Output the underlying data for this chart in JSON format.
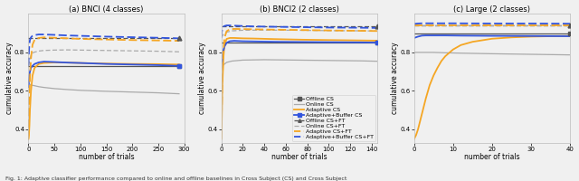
{
  "fig_width": 6.4,
  "fig_height": 2.0,
  "dpi": 100,
  "subplots": [
    {
      "title": "(a) BNCI (4 classes)",
      "xlabel": "number of trials",
      "ylabel": "cumulative accuracy",
      "xlim": [
        0,
        300
      ],
      "ylim": [
        0.33,
        1.0
      ],
      "yticks": [
        0.4,
        0.6,
        0.8
      ],
      "xticks": [
        0,
        50,
        100,
        150,
        200,
        250,
        300
      ],
      "lines": [
        {
          "label": "Offline CS",
          "color": "#555555",
          "ls": "solid",
          "lw": 0.9,
          "marker": "s",
          "marker_at_end": true,
          "x": [
            0,
            5,
            10,
            20,
            30,
            50,
            100,
            150,
            200,
            250,
            290
          ],
          "y": [
            0.73,
            0.73,
            0.73,
            0.73,
            0.73,
            0.73,
            0.73,
            0.73,
            0.73,
            0.73,
            0.73
          ]
        },
        {
          "label": "Online CS",
          "color": "#aaaaaa",
          "ls": "solid",
          "lw": 0.9,
          "marker": null,
          "marker_at_end": false,
          "x": [
            0,
            5,
            10,
            20,
            30,
            50,
            75,
            100,
            150,
            200,
            250,
            290
          ],
          "y": [
            0.64,
            0.63,
            0.628,
            0.622,
            0.618,
            0.612,
            0.607,
            0.603,
            0.598,
            0.594,
            0.59,
            0.585
          ]
        },
        {
          "label": "Adaptive CS",
          "color": "#f5a623",
          "ls": "solid",
          "lw": 1.3,
          "marker": null,
          "marker_at_end": false,
          "x": [
            0,
            1,
            2,
            3,
            5,
            8,
            12,
            20,
            30,
            50,
            75,
            100,
            150,
            200,
            250,
            290
          ],
          "y": [
            0.35,
            0.37,
            0.42,
            0.5,
            0.6,
            0.68,
            0.72,
            0.74,
            0.745,
            0.748,
            0.747,
            0.745,
            0.742,
            0.74,
            0.739,
            0.737
          ]
        },
        {
          "label": "Adaptive+Buffer CS",
          "color": "#3355dd",
          "ls": "solid",
          "lw": 1.3,
          "marker": "s",
          "marker_at_end": true,
          "x": [
            0,
            1,
            2,
            3,
            5,
            8,
            12,
            20,
            30,
            50,
            75,
            100,
            150,
            200,
            250,
            290
          ],
          "y": [
            0.62,
            0.65,
            0.68,
            0.7,
            0.72,
            0.73,
            0.74,
            0.748,
            0.752,
            0.75,
            0.747,
            0.745,
            0.74,
            0.737,
            0.734,
            0.73
          ]
        },
        {
          "label": "Offline CS+FT",
          "color": "#555555",
          "ls": "dashed",
          "lw": 0.9,
          "dashes": [
            4,
            2
          ],
          "marker": "^",
          "marker_at_end": true,
          "x": [
            0,
            5,
            10,
            20,
            30,
            50,
            100,
            150,
            200,
            250,
            290
          ],
          "y": [
            0.875,
            0.875,
            0.875,
            0.875,
            0.875,
            0.875,
            0.875,
            0.875,
            0.875,
            0.875,
            0.875
          ]
        },
        {
          "label": "Online CS+FT",
          "color": "#aaaaaa",
          "ls": "dashed",
          "lw": 0.9,
          "dashes": [
            4,
            2
          ],
          "marker": null,
          "marker_at_end": false,
          "x": [
            0,
            5,
            10,
            20,
            30,
            50,
            75,
            100,
            150,
            200,
            250,
            290
          ],
          "y": [
            0.73,
            0.785,
            0.8,
            0.807,
            0.81,
            0.812,
            0.813,
            0.812,
            0.81,
            0.808,
            0.806,
            0.803
          ]
        },
        {
          "label": "Adaptive CS+FT",
          "color": "#f5a623",
          "ls": "dashed",
          "lw": 1.3,
          "dashes": [
            5,
            2
          ],
          "marker": null,
          "marker_at_end": false,
          "x": [
            0,
            1,
            2,
            3,
            5,
            8,
            12,
            20,
            30,
            50,
            75,
            100,
            150,
            200,
            250,
            290
          ],
          "y": [
            0.35,
            0.42,
            0.56,
            0.67,
            0.77,
            0.84,
            0.865,
            0.875,
            0.878,
            0.876,
            0.873,
            0.87,
            0.867,
            0.864,
            0.862,
            0.86
          ]
        },
        {
          "label": "Adaptive+Buffer CS+FT",
          "color": "#3355dd",
          "ls": "dashed",
          "lw": 1.3,
          "dashes": [
            5,
            2
          ],
          "marker": null,
          "marker_at_end": false,
          "x": [
            0,
            1,
            2,
            3,
            5,
            8,
            12,
            20,
            30,
            50,
            75,
            100,
            150,
            200,
            250,
            290
          ],
          "y": [
            0.73,
            0.8,
            0.845,
            0.865,
            0.878,
            0.886,
            0.89,
            0.893,
            0.893,
            0.891,
            0.888,
            0.886,
            0.882,
            0.879,
            0.876,
            0.873
          ]
        }
      ]
    },
    {
      "title": "(b) BNCI2 (2 classes)",
      "xlabel": "number of trials",
      "ylabel": "cumulative accuracy",
      "xlim": [
        0,
        145
      ],
      "ylim": [
        0.33,
        1.0
      ],
      "yticks": [
        0.4,
        0.6,
        0.8
      ],
      "xticks": [
        0,
        20,
        40,
        60,
        80,
        100,
        120,
        140
      ],
      "lines": [
        {
          "label": "Offline CS",
          "color": "#555555",
          "ls": "solid",
          "lw": 0.9,
          "marker": "s",
          "marker_at_end": true,
          "x": [
            0,
            5,
            10,
            20,
            40,
            70,
            100,
            130,
            145
          ],
          "y": [
            0.853,
            0.853,
            0.853,
            0.853,
            0.853,
            0.853,
            0.853,
            0.853,
            0.853
          ]
        },
        {
          "label": "Online CS",
          "color": "#aaaaaa",
          "ls": "solid",
          "lw": 0.9,
          "marker": null,
          "marker_at_end": false,
          "x": [
            0,
            2,
            5,
            10,
            20,
            40,
            70,
            100,
            130,
            145
          ],
          "y": [
            0.715,
            0.735,
            0.748,
            0.755,
            0.76,
            0.762,
            0.76,
            0.758,
            0.756,
            0.754
          ]
        },
        {
          "label": "Adaptive CS",
          "color": "#f5a623",
          "ls": "solid",
          "lw": 1.3,
          "marker": null,
          "marker_at_end": false,
          "x": [
            0,
            0.5,
            1,
            2,
            3,
            5,
            8,
            12,
            20,
            30,
            50,
            75,
            100,
            130,
            145
          ],
          "y": [
            0.35,
            0.45,
            0.62,
            0.77,
            0.84,
            0.87,
            0.875,
            0.875,
            0.873,
            0.872,
            0.869,
            0.866,
            0.864,
            0.862,
            0.861
          ]
        },
        {
          "label": "Adaptive+Buffer CS",
          "color": "#3355dd",
          "ls": "solid",
          "lw": 1.3,
          "marker": "s",
          "marker_at_end": true,
          "x": [
            0,
            0.5,
            1,
            2,
            3,
            5,
            8,
            12,
            20,
            30,
            50,
            75,
            100,
            130,
            145
          ],
          "y": [
            0.715,
            0.745,
            0.78,
            0.81,
            0.83,
            0.85,
            0.858,
            0.86,
            0.858,
            0.857,
            0.855,
            0.854,
            0.853,
            0.852,
            0.851
          ]
        },
        {
          "label": "Offline CS+FT",
          "color": "#555555",
          "ls": "dashed",
          "lw": 0.9,
          "dashes": [
            4,
            2
          ],
          "marker": "^",
          "marker_at_end": true,
          "x": [
            0,
            5,
            10,
            20,
            40,
            70,
            100,
            130,
            145
          ],
          "y": [
            0.935,
            0.935,
            0.935,
            0.935,
            0.935,
            0.935,
            0.935,
            0.935,
            0.935
          ]
        },
        {
          "label": "Online CS+FT",
          "color": "#aaaaaa",
          "ls": "dashed",
          "lw": 0.9,
          "dashes": [
            4,
            2
          ],
          "marker": null,
          "marker_at_end": false,
          "x": [
            0,
            2,
            5,
            10,
            20,
            40,
            70,
            100,
            130,
            145
          ],
          "y": [
            0.875,
            0.893,
            0.905,
            0.912,
            0.915,
            0.916,
            0.915,
            0.913,
            0.912,
            0.911
          ]
        },
        {
          "label": "Adaptive CS+FT",
          "color": "#f5a623",
          "ls": "dashed",
          "lw": 1.3,
          "dashes": [
            5,
            2
          ],
          "marker": null,
          "marker_at_end": false,
          "x": [
            0,
            0.5,
            1,
            2,
            3,
            5,
            8,
            12,
            20,
            30,
            50,
            75,
            100,
            130,
            145
          ],
          "y": [
            0.35,
            0.5,
            0.65,
            0.8,
            0.875,
            0.91,
            0.92,
            0.922,
            0.921,
            0.92,
            0.918,
            0.916,
            0.914,
            0.912,
            0.911
          ]
        },
        {
          "label": "Adaptive+Buffer CS+FT",
          "color": "#3355dd",
          "ls": "dashed",
          "lw": 1.3,
          "dashes": [
            5,
            2
          ],
          "marker": null,
          "marker_at_end": false,
          "x": [
            0,
            0.5,
            1,
            2,
            3,
            5,
            8,
            12,
            20,
            30,
            50,
            75,
            100,
            130,
            145
          ],
          "y": [
            0.875,
            0.905,
            0.922,
            0.933,
            0.937,
            0.94,
            0.94,
            0.939,
            0.937,
            0.935,
            0.933,
            0.931,
            0.929,
            0.928,
            0.927
          ]
        }
      ],
      "legend": {
        "entries": [
          {
            "label": "Offline CS",
            "color": "#555555",
            "ls": "solid",
            "lw": 0.9,
            "marker": "s"
          },
          {
            "label": "Online CS",
            "color": "#aaaaaa",
            "ls": "solid",
            "lw": 0.9,
            "marker": null
          },
          {
            "label": "Adaptive CS",
            "color": "#f5a623",
            "ls": "solid",
            "lw": 1.3,
            "marker": null
          },
          {
            "label": "Adaptive+Buffer CS",
            "color": "#3355dd",
            "ls": "solid",
            "lw": 1.3,
            "marker": "s"
          },
          {
            "label": "Offline CS+FT",
            "color": "#555555",
            "ls": "dashed",
            "lw": 0.9,
            "marker": "^"
          },
          {
            "label": "Online CS+FT",
            "color": "#aaaaaa",
            "ls": "dashed",
            "lw": 0.9,
            "marker": null
          },
          {
            "label": "Adaptive CS+FT",
            "color": "#f5a623",
            "ls": "dashed",
            "lw": 1.3,
            "marker": null
          },
          {
            "label": "Adaptive+Buffer CS+FT",
            "color": "#3355dd",
            "ls": "dashed",
            "lw": 1.3,
            "marker": null
          }
        ],
        "loc": "lower right",
        "fontsize": 4.5
      }
    },
    {
      "title": "(c) Large (2 classes)",
      "xlabel": "number of trials",
      "ylabel": "cumulative accuracy",
      "xlim": [
        0,
        40
      ],
      "ylim": [
        0.33,
        1.0
      ],
      "yticks": [
        0.4,
        0.6,
        0.8
      ],
      "xticks": [
        0,
        10,
        20,
        30,
        40
      ],
      "lines": [
        {
          "label": "Offline CS",
          "color": "#555555",
          "ls": "solid",
          "lw": 0.9,
          "marker": "s",
          "marker_at_end": true,
          "x": [
            0,
            2,
            5,
            10,
            20,
            30,
            40
          ],
          "y": [
            0.9,
            0.9,
            0.9,
            0.9,
            0.9,
            0.9,
            0.9
          ]
        },
        {
          "label": "Online CS",
          "color": "#aaaaaa",
          "ls": "solid",
          "lw": 0.9,
          "marker": null,
          "marker_at_end": false,
          "x": [
            0,
            1,
            2,
            3,
            5,
            8,
            12,
            20,
            30,
            40
          ],
          "y": [
            0.8,
            0.8,
            0.8,
            0.8,
            0.8,
            0.798,
            0.796,
            0.793,
            0.79,
            0.787
          ]
        },
        {
          "label": "Adaptive CS",
          "color": "#f5a623",
          "ls": "solid",
          "lw": 1.3,
          "marker": null,
          "marker_at_end": false,
          "x": [
            0,
            0.5,
            1,
            1.5,
            2,
            3,
            4,
            5,
            6,
            7,
            8,
            10,
            12,
            15,
            20,
            25,
            30,
            35,
            40
          ],
          "y": [
            0.35,
            0.37,
            0.4,
            0.44,
            0.48,
            0.56,
            0.63,
            0.68,
            0.72,
            0.755,
            0.78,
            0.815,
            0.838,
            0.855,
            0.871,
            0.878,
            0.882,
            0.884,
            0.885
          ]
        },
        {
          "label": "Adaptive+Buffer CS",
          "color": "#3355dd",
          "ls": "solid",
          "lw": 1.3,
          "marker": null,
          "marker_at_end": false,
          "x": [
            0,
            1,
            2,
            3,
            5,
            8,
            12,
            20,
            30,
            40
          ],
          "y": [
            0.875,
            0.882,
            0.887,
            0.888,
            0.888,
            0.888,
            0.887,
            0.886,
            0.885,
            0.884
          ]
        },
        {
          "label": "Offline CS+FT",
          "color": "#555555",
          "ls": "dashed",
          "lw": 0.9,
          "dashes": [
            4,
            2
          ],
          "marker": "^",
          "marker_at_end": true,
          "x": [
            0,
            2,
            5,
            10,
            20,
            30,
            40
          ],
          "y": [
            0.94,
            0.94,
            0.94,
            0.94,
            0.94,
            0.94,
            0.94
          ]
        },
        {
          "label": "Online CS+FT",
          "color": "#aaaaaa",
          "ls": "dashed",
          "lw": 0.9,
          "dashes": [
            4,
            2
          ],
          "marker": null,
          "marker_at_end": false,
          "x": [
            0,
            2,
            5,
            10,
            20,
            30,
            40
          ],
          "y": [
            0.94,
            0.94,
            0.94,
            0.94,
            0.94,
            0.94,
            0.94
          ]
        },
        {
          "label": "Adaptive CS+FT",
          "color": "#f5a623",
          "ls": "dashed",
          "lw": 1.3,
          "dashes": [
            5,
            2
          ],
          "marker": null,
          "marker_at_end": false,
          "x": [
            0,
            2,
            5,
            10,
            20,
            30,
            40
          ],
          "y": [
            0.94,
            0.94,
            0.94,
            0.94,
            0.94,
            0.94,
            0.94
          ]
        },
        {
          "label": "Adaptive+Buffer CS+FT",
          "color": "#3355dd",
          "ls": "dashed",
          "lw": 1.3,
          "dashes": [
            5,
            2
          ],
          "marker": null,
          "marker_at_end": false,
          "x": [
            0,
            1,
            2,
            5,
            10,
            20,
            30,
            40
          ],
          "y": [
            0.948,
            0.95,
            0.951,
            0.951,
            0.951,
            0.95,
            0.95,
            0.949
          ]
        }
      ]
    }
  ],
  "caption_text": "Fig. 1: Adaptive classifier performance compared to online and offline baselines in Cross Subject (CS) and Cross Subject",
  "background_color": "#f0f0f0",
  "axes_bg": "#f0f0f0"
}
